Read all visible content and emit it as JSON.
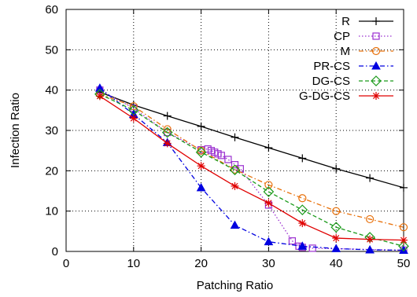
{
  "chart_data": {
    "type": "line",
    "xlabel": "Patching Ratio",
    "ylabel": "Infection Ratio",
    "xlim": [
      0,
      50
    ],
    "ylim": [
      0,
      60
    ],
    "xticks": [
      "0",
      "10",
      "20",
      "30",
      "40",
      "50"
    ],
    "yticks": [
      "0",
      "10",
      "20",
      "30",
      "40",
      "50",
      "60"
    ],
    "grid": true,
    "legend_position": "top-right",
    "series": [
      {
        "name": "R",
        "color": "#000000",
        "marker": "plus",
        "dash": "solid",
        "points": [
          [
            5,
            39.5
          ],
          [
            10,
            36.3
          ],
          [
            15,
            33.6
          ],
          [
            20,
            31.0
          ],
          [
            25,
            28.3
          ],
          [
            30,
            25.7
          ],
          [
            35,
            23.1
          ],
          [
            40,
            20.5
          ],
          [
            45,
            18.2
          ],
          [
            50,
            15.8
          ]
        ]
      },
      {
        "name": "CP",
        "color": "#9b30d0",
        "marker": "square",
        "dash": "dot",
        "points": [
          [
            5,
            40.0
          ],
          [
            10,
            35.5
          ],
          [
            15,
            29.5
          ],
          [
            20,
            25.2
          ],
          [
            21.0,
            25.4
          ],
          [
            21.5,
            25.0
          ],
          [
            22.0,
            24.6
          ],
          [
            22.5,
            24.2
          ],
          [
            23.0,
            23.8
          ],
          [
            24.0,
            22.8
          ],
          [
            25.0,
            21.5
          ],
          [
            25.8,
            20.5
          ],
          [
            30,
            11.5
          ],
          [
            33.5,
            2.6
          ],
          [
            34.5,
            1.3
          ],
          [
            35,
            1.0
          ],
          [
            36.5,
            0.8
          ],
          [
            50,
            0.3
          ]
        ]
      },
      {
        "name": "M",
        "color": "#e8700a",
        "marker": "circle",
        "dash": "dashdot",
        "points": [
          [
            5,
            39.0
          ],
          [
            10,
            36.0
          ],
          [
            15,
            30.3
          ],
          [
            20,
            25.0
          ],
          [
            25,
            20.3
          ],
          [
            30,
            16.5
          ],
          [
            35,
            13.2
          ],
          [
            40,
            10.0
          ],
          [
            45,
            8.0
          ],
          [
            50,
            6.0
          ]
        ]
      },
      {
        "name": "PR-CS",
        "color": "#0000e0",
        "marker": "triangle",
        "dash": "dashdot",
        "points": [
          [
            5,
            40.5
          ],
          [
            10,
            34.0
          ],
          [
            15,
            27.0
          ],
          [
            20,
            15.8
          ],
          [
            25,
            6.5
          ],
          [
            30,
            2.4
          ],
          [
            35,
            1.3
          ],
          [
            40,
            0.7
          ],
          [
            45,
            0.4
          ],
          [
            50,
            0.3
          ]
        ]
      },
      {
        "name": "DG-CS",
        "color": "#1a9a1a",
        "marker": "diamond",
        "dash": "dash",
        "points": [
          [
            5,
            39.0
          ],
          [
            10,
            35.0
          ],
          [
            15,
            29.5
          ],
          [
            20,
            24.6
          ],
          [
            25,
            20.2
          ],
          [
            30,
            14.8
          ],
          [
            35,
            10.3
          ],
          [
            40,
            6.0
          ],
          [
            45,
            3.5
          ],
          [
            50,
            1.3
          ]
        ]
      },
      {
        "name": "G-DG-CS",
        "color": "#e00000",
        "marker": "asterisk",
        "dash": "solid",
        "points": [
          [
            5,
            38.5
          ],
          [
            10,
            33.0
          ],
          [
            15,
            26.8
          ],
          [
            20,
            21.2
          ],
          [
            25,
            16.2
          ],
          [
            30,
            12.0
          ],
          [
            35,
            7.0
          ],
          [
            40,
            3.3
          ],
          [
            45,
            3.0
          ],
          [
            50,
            2.8
          ]
        ]
      }
    ]
  }
}
